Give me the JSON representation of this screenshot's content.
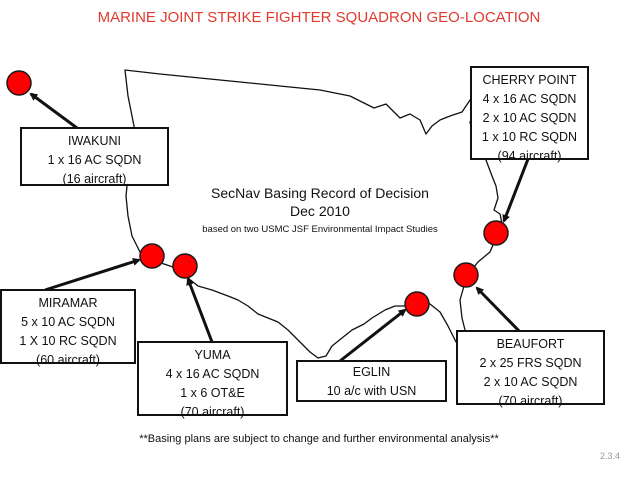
{
  "title": "MARINE JOINT STRIKE FIGHTER SQUADRON GEO-LOCATION",
  "center_text": {
    "line1": "SecNav Basing Record of Decision",
    "line2": "Dec 2010",
    "line3": "based on two USMC JSF Environmental Impact Studies"
  },
  "boxes": {
    "iwakuni": [
      "IWAKUNI",
      "1 x 16 AC SQDN",
      "(16 aircraft)"
    ],
    "cherry_point": [
      "CHERRY POINT",
      "4 x 16 AC SQDN",
      "2 x 10 AC SQDN",
      "1 x 10 RC SQDN",
      "(94 aircraft)"
    ],
    "miramar": [
      "MIRAMAR",
      "5 x 10 AC SQDN",
      "1 X 10 RC SQDN",
      "(60 aircraft)"
    ],
    "yuma": [
      "YUMA",
      "4 x 16 AC SQDN",
      "1 x 6  OT&E",
      "(70 aircraft)"
    ],
    "eglin": [
      "EGLIN",
      "10 a/c with USN"
    ],
    "beaufort": [
      "BEAUFORT",
      "2 x 25 FRS SQDN",
      "2 x 10 AC SQDN",
      "(70 aircraft)"
    ]
  },
  "footnote": "**Basing plans are subject to change and further environmental analysis**",
  "slide_number": "2.3.4",
  "colors": {
    "title": "#e03a2f",
    "marker_fill": "#ff0000",
    "marker_stroke": "#1a1a1a",
    "map_outline": "#111111"
  }
}
